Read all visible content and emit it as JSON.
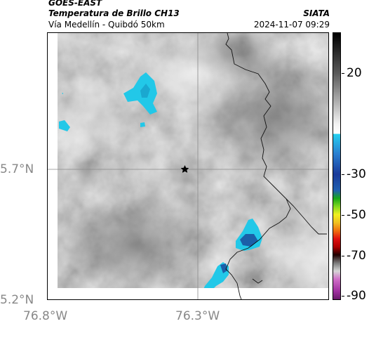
{
  "header": {
    "satellite": "GOES-EAST",
    "product": "Temperatura de Brillo CH13",
    "route": "Vía Medellín - Quibdó 50km",
    "org": "SIATA",
    "timestamp": "2024-11-07 09:29"
  },
  "axes": {
    "lat_labels": [
      "5.7°N",
      "5.2°N"
    ],
    "lon_labels": [
      "76.8°W",
      "76.3°W"
    ]
  },
  "colorbar": {
    "labels": [
      "20",
      "-30",
      "-50",
      "-70",
      "-90"
    ],
    "values": [
      20,
      -30,
      -50,
      -70,
      -90
    ]
  },
  "colors": {
    "cloud_cyan": "#22c8e8",
    "cloud_blue": "#1b5fa8",
    "border": "#000000"
  },
  "marker": {
    "icon": "star-icon"
  }
}
